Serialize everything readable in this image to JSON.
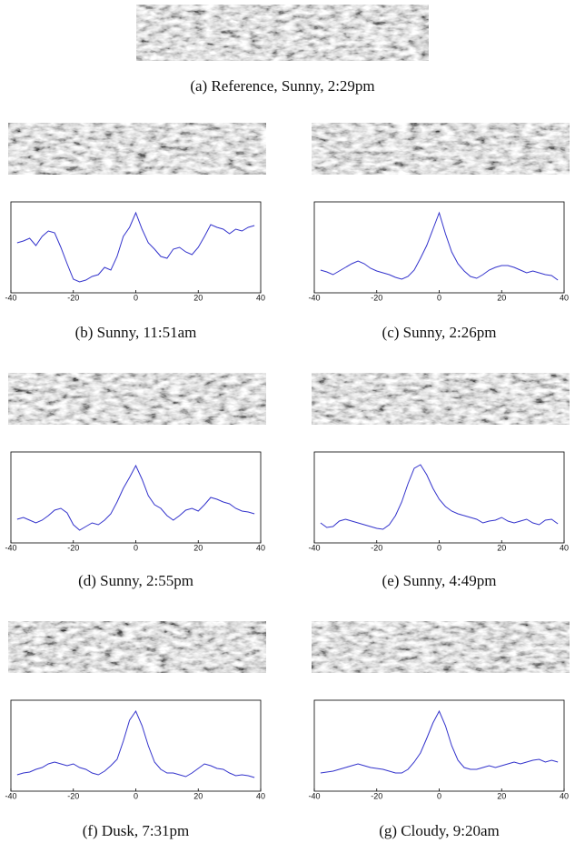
{
  "reference": {
    "caption": "(a) Reference, Sunny, 2:29pm"
  },
  "chart_data": [
    {
      "type": "line",
      "caption": "(b) Sunny, 11:51am",
      "x": [
        -38,
        -36,
        -34,
        -32,
        -30,
        -28,
        -26,
        -24,
        -22,
        -20,
        -18,
        -16,
        -14,
        -12,
        -10,
        -8,
        -6,
        -4,
        -2,
        0,
        2,
        4,
        6,
        8,
        10,
        12,
        14,
        16,
        18,
        20,
        22,
        24,
        26,
        28,
        30,
        32,
        34,
        36,
        38
      ],
      "series": [
        {
          "color": "#3333cc",
          "values": [
            0.55,
            0.57,
            0.6,
            0.52,
            0.62,
            0.68,
            0.66,
            0.5,
            0.32,
            0.15,
            0.12,
            0.14,
            0.18,
            0.2,
            0.28,
            0.25,
            0.4,
            0.62,
            0.72,
            0.88,
            0.7,
            0.55,
            0.48,
            0.4,
            0.38,
            0.48,
            0.5,
            0.45,
            0.42,
            0.5,
            0.62,
            0.75,
            0.72,
            0.7,
            0.65,
            0.7,
            0.68,
            0.72,
            0.74
          ]
        }
      ],
      "xlim": [
        -40,
        40
      ],
      "xticks": [
        -40,
        -20,
        0,
        20,
        40
      ],
      "ylim": [
        0,
        1
      ]
    },
    {
      "type": "line",
      "caption": "(c) Sunny, 2:26pm",
      "x": [
        -38,
        -36,
        -34,
        -32,
        -30,
        -28,
        -26,
        -24,
        -22,
        -20,
        -18,
        -16,
        -14,
        -12,
        -10,
        -8,
        -6,
        -4,
        -2,
        0,
        2,
        4,
        6,
        8,
        10,
        12,
        14,
        16,
        18,
        20,
        22,
        24,
        26,
        28,
        30,
        32,
        34,
        36,
        38
      ],
      "series": [
        {
          "color": "#3333cc",
          "values": [
            0.25,
            0.23,
            0.2,
            0.24,
            0.28,
            0.32,
            0.35,
            0.32,
            0.27,
            0.24,
            0.22,
            0.2,
            0.17,
            0.15,
            0.18,
            0.25,
            0.38,
            0.52,
            0.7,
            0.88,
            0.65,
            0.45,
            0.32,
            0.24,
            0.18,
            0.16,
            0.2,
            0.25,
            0.28,
            0.3,
            0.3,
            0.28,
            0.25,
            0.22,
            0.24,
            0.22,
            0.2,
            0.19,
            0.14
          ]
        }
      ],
      "xlim": [
        -40,
        40
      ],
      "xticks": [
        -40,
        -20,
        0,
        20,
        40
      ],
      "ylim": [
        0,
        1
      ]
    },
    {
      "type": "line",
      "caption": "(d) Sunny, 2:55pm",
      "x": [
        -38,
        -36,
        -34,
        -32,
        -30,
        -28,
        -26,
        -24,
        -22,
        -20,
        -18,
        -16,
        -14,
        -12,
        -10,
        -8,
        -6,
        -4,
        -2,
        0,
        2,
        4,
        6,
        8,
        10,
        12,
        14,
        16,
        18,
        20,
        22,
        24,
        26,
        28,
        30,
        32,
        34,
        36,
        38
      ],
      "series": [
        {
          "color": "#3333cc",
          "values": [
            0.26,
            0.28,
            0.25,
            0.22,
            0.25,
            0.3,
            0.36,
            0.38,
            0.33,
            0.2,
            0.14,
            0.18,
            0.22,
            0.2,
            0.25,
            0.32,
            0.45,
            0.6,
            0.72,
            0.85,
            0.7,
            0.52,
            0.42,
            0.38,
            0.3,
            0.25,
            0.3,
            0.36,
            0.38,
            0.35,
            0.42,
            0.5,
            0.48,
            0.45,
            0.43,
            0.38,
            0.35,
            0.34,
            0.32
          ]
        }
      ],
      "xlim": [
        -40,
        40
      ],
      "xticks": [
        -40,
        -20,
        0,
        20,
        40
      ],
      "ylim": [
        0,
        1
      ]
    },
    {
      "type": "line",
      "caption": "(e) Sunny, 4:49pm",
      "x": [
        -38,
        -36,
        -34,
        -32,
        -30,
        -28,
        -26,
        -24,
        -22,
        -20,
        -18,
        -16,
        -14,
        -12,
        -10,
        -8,
        -6,
        -4,
        -2,
        0,
        2,
        4,
        6,
        8,
        10,
        12,
        14,
        16,
        18,
        20,
        22,
        24,
        26,
        28,
        30,
        32,
        34,
        36,
        38
      ],
      "series": [
        {
          "color": "#3333cc",
          "values": [
            0.22,
            0.17,
            0.18,
            0.24,
            0.26,
            0.24,
            0.22,
            0.2,
            0.18,
            0.16,
            0.15,
            0.2,
            0.3,
            0.45,
            0.65,
            0.82,
            0.86,
            0.75,
            0.6,
            0.48,
            0.4,
            0.35,
            0.32,
            0.3,
            0.28,
            0.26,
            0.22,
            0.24,
            0.25,
            0.28,
            0.24,
            0.22,
            0.24,
            0.26,
            0.22,
            0.2,
            0.25,
            0.26,
            0.21
          ]
        }
      ],
      "xlim": [
        -40,
        40
      ],
      "xticks": [
        -40,
        -20,
        0,
        20,
        40
      ],
      "ylim": [
        0,
        1
      ]
    },
    {
      "type": "line",
      "caption": "(f) Dusk, 7:31pm",
      "x": [
        -38,
        -36,
        -34,
        -32,
        -30,
        -28,
        -26,
        -24,
        -22,
        -20,
        -18,
        -16,
        -14,
        -12,
        -10,
        -8,
        -6,
        -4,
        -2,
        0,
        2,
        4,
        6,
        8,
        10,
        12,
        14,
        16,
        18,
        20,
        22,
        24,
        26,
        28,
        30,
        32,
        34,
        36,
        38
      ],
      "series": [
        {
          "color": "#3333cc",
          "values": [
            0.18,
            0.2,
            0.21,
            0.24,
            0.26,
            0.3,
            0.32,
            0.3,
            0.28,
            0.3,
            0.26,
            0.24,
            0.2,
            0.18,
            0.22,
            0.28,
            0.35,
            0.55,
            0.78,
            0.88,
            0.72,
            0.5,
            0.32,
            0.24,
            0.2,
            0.2,
            0.18,
            0.16,
            0.2,
            0.25,
            0.3,
            0.28,
            0.25,
            0.24,
            0.2,
            0.17,
            0.18,
            0.17,
            0.15
          ]
        }
      ],
      "xlim": [
        -40,
        40
      ],
      "xticks": [
        -40,
        -20,
        0,
        20,
        40
      ],
      "ylim": [
        0,
        1
      ]
    },
    {
      "type": "line",
      "caption": "(g) Cloudy, 9:20am",
      "x": [
        -38,
        -36,
        -34,
        -32,
        -30,
        -28,
        -26,
        -24,
        -22,
        -20,
        -18,
        -16,
        -14,
        -12,
        -10,
        -8,
        -6,
        -4,
        -2,
        0,
        2,
        4,
        6,
        8,
        10,
        12,
        14,
        16,
        18,
        20,
        22,
        24,
        26,
        28,
        30,
        32,
        34,
        36,
        38
      ],
      "series": [
        {
          "color": "#3333cc",
          "values": [
            0.2,
            0.21,
            0.22,
            0.24,
            0.26,
            0.28,
            0.3,
            0.28,
            0.26,
            0.25,
            0.24,
            0.22,
            0.2,
            0.2,
            0.24,
            0.32,
            0.42,
            0.58,
            0.75,
            0.88,
            0.72,
            0.5,
            0.34,
            0.26,
            0.24,
            0.24,
            0.26,
            0.28,
            0.26,
            0.28,
            0.3,
            0.32,
            0.3,
            0.32,
            0.34,
            0.35,
            0.32,
            0.34,
            0.32
          ]
        }
      ],
      "xlim": [
        -40,
        40
      ],
      "xticks": [
        -40,
        -20,
        0,
        20,
        40
      ],
      "ylim": [
        0,
        1
      ]
    }
  ]
}
